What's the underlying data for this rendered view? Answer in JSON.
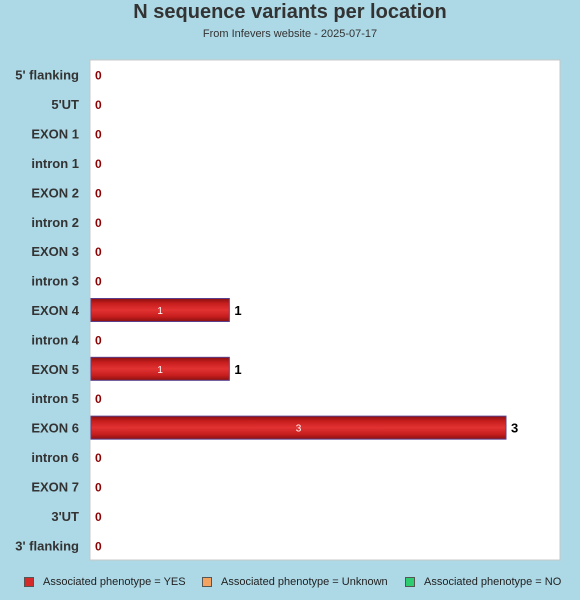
{
  "chart_data": {
    "type": "bar",
    "orientation": "horizontal",
    "title": "N sequence variants per location",
    "subtitle": "From Infevers website - 2025-07-17",
    "categories": [
      "5' flanking",
      "5'UT",
      "EXON 1",
      "intron 1",
      "EXON 2",
      "intron 2",
      "EXON 3",
      "intron 3",
      "EXON 4",
      "intron 4",
      "EXON 5",
      "intron 5",
      "EXON 6",
      "intron 6",
      "EXON 7",
      "3'UT",
      "3' flanking"
    ],
    "series": [
      {
        "name": "Associated phenotype = YES",
        "color": "#d42a2a",
        "values": [
          0,
          0,
          0,
          0,
          0,
          0,
          0,
          0,
          1,
          0,
          1,
          0,
          3,
          0,
          0,
          0,
          0
        ]
      },
      {
        "name": "Associated phenotype = Unknown",
        "color": "#f4a460",
        "values": [
          0,
          0,
          0,
          0,
          0,
          0,
          0,
          0,
          0,
          0,
          0,
          0,
          0,
          0,
          0,
          0,
          0
        ]
      },
      {
        "name": "Associated phenotype = NO",
        "color": "#2ecc71",
        "values": [
          0,
          0,
          0,
          0,
          0,
          0,
          0,
          0,
          0,
          0,
          0,
          0,
          0,
          0,
          0,
          0,
          0
        ]
      }
    ],
    "totals": [
      0,
      0,
      0,
      0,
      0,
      0,
      0,
      0,
      1,
      0,
      1,
      0,
      3,
      0,
      0,
      0,
      0
    ],
    "xlim": [
      0,
      3
    ],
    "grid": false,
    "legend_position": "bottom"
  }
}
